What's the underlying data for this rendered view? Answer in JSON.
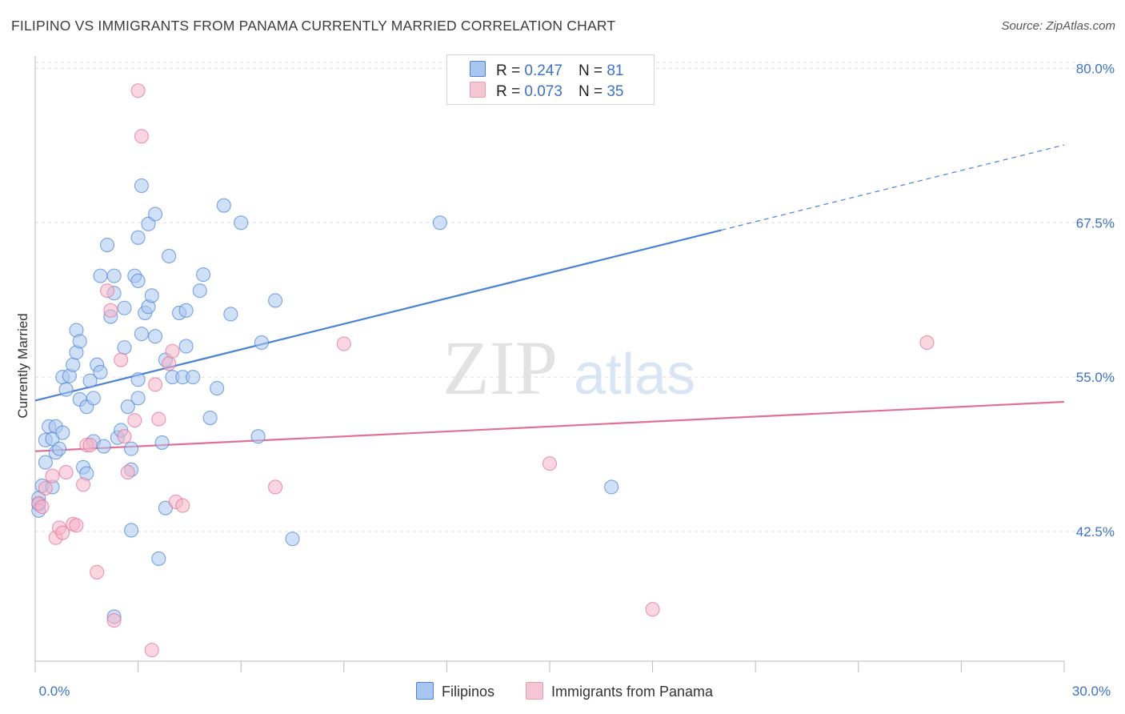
{
  "header": {
    "title": "FILIPINO VS IMMIGRANTS FROM PANAMA CURRENTLY MARRIED CORRELATION CHART",
    "source": "Source: ZipAtlas.com"
  },
  "watermark": {
    "zip": "ZIP",
    "atlas": "atlas"
  },
  "stats_legend": [
    {
      "r_label": "R =",
      "r_value": "0.247",
      "n_label": "N =",
      "n_value": "81",
      "color": "#a9c6f0"
    },
    {
      "r_label": "R =",
      "r_value": "0.073",
      "n_label": "N =",
      "n_value": "35",
      "color": "#f5b5c8"
    }
  ],
  "chart_data": {
    "type": "scatter",
    "ylabel": "Currently Married",
    "xlim": [
      0,
      30
    ],
    "ylim": [
      32,
      81
    ],
    "x_ticks": [
      0,
      3,
      6,
      9,
      12,
      15,
      18,
      21,
      24,
      27,
      30
    ],
    "x_tick_labels": [
      "0.0%",
      "30.0%"
    ],
    "y_ticks": [
      42.5,
      55.0,
      67.5,
      80.0
    ],
    "y_tick_labels": [
      "42.5%",
      "55.0%",
      "67.5%",
      "80.0%"
    ],
    "grid": true,
    "legend_position": "bottom-center",
    "series": [
      {
        "name": "Filipinos",
        "color": "#4a82d4",
        "fill": "#a9c6f0",
        "trend": {
          "x": [
            0,
            20
          ],
          "y": [
            53.1,
            66.9
          ],
          "dashed_to": [
            30,
            73.8
          ]
        },
        "points": [
          [
            0.1,
            45.2
          ],
          [
            0.1,
            44.7
          ],
          [
            0.1,
            44.2
          ],
          [
            0.2,
            46.2
          ],
          [
            0.3,
            48.1
          ],
          [
            0.3,
            49.9
          ],
          [
            0.4,
            51.0
          ],
          [
            0.5,
            50.0
          ],
          [
            0.5,
            46.1
          ],
          [
            0.6,
            48.9
          ],
          [
            0.6,
            51.0
          ],
          [
            0.7,
            49.2
          ],
          [
            0.8,
            50.5
          ],
          [
            0.8,
            55.0
          ],
          [
            0.9,
            54.0
          ],
          [
            1.0,
            55.1
          ],
          [
            1.1,
            56.0
          ],
          [
            1.2,
            57.0
          ],
          [
            1.2,
            58.8
          ],
          [
            1.3,
            53.2
          ],
          [
            1.3,
            57.9
          ],
          [
            1.4,
            47.7
          ],
          [
            1.5,
            47.2
          ],
          [
            1.5,
            52.6
          ],
          [
            1.6,
            54.7
          ],
          [
            1.7,
            49.8
          ],
          [
            1.7,
            53.3
          ],
          [
            1.8,
            56.0
          ],
          [
            1.9,
            55.4
          ],
          [
            1.9,
            63.2
          ],
          [
            2.0,
            49.4
          ],
          [
            2.1,
            65.7
          ],
          [
            2.2,
            59.9
          ],
          [
            2.3,
            61.8
          ],
          [
            2.3,
            35.6
          ],
          [
            2.3,
            63.2
          ],
          [
            2.4,
            50.1
          ],
          [
            2.5,
            50.7
          ],
          [
            2.6,
            60.6
          ],
          [
            2.6,
            57.4
          ],
          [
            2.7,
            52.6
          ],
          [
            2.8,
            49.2
          ],
          [
            2.8,
            47.5
          ],
          [
            2.8,
            42.6
          ],
          [
            2.9,
            63.2
          ],
          [
            3.0,
            62.8
          ],
          [
            3.0,
            53.3
          ],
          [
            3.0,
            54.8
          ],
          [
            3.0,
            66.3
          ],
          [
            3.1,
            70.5
          ],
          [
            3.1,
            58.5
          ],
          [
            3.2,
            60.2
          ],
          [
            3.3,
            67.4
          ],
          [
            3.3,
            60.7
          ],
          [
            3.4,
            61.6
          ],
          [
            3.5,
            58.3
          ],
          [
            3.5,
            68.2
          ],
          [
            3.6,
            40.3
          ],
          [
            3.7,
            49.7
          ],
          [
            3.8,
            44.4
          ],
          [
            3.8,
            56.4
          ],
          [
            3.9,
            64.8
          ],
          [
            4.0,
            55.0
          ],
          [
            4.2,
            60.2
          ],
          [
            4.3,
            55.0
          ],
          [
            4.4,
            57.5
          ],
          [
            4.4,
            60.4
          ],
          [
            4.6,
            55.0
          ],
          [
            4.8,
            62.0
          ],
          [
            4.9,
            63.3
          ],
          [
            5.1,
            51.7
          ],
          [
            5.3,
            54.1
          ],
          [
            5.5,
            68.9
          ],
          [
            5.7,
            60.1
          ],
          [
            6.0,
            67.5
          ],
          [
            6.5,
            50.2
          ],
          [
            6.6,
            57.8
          ],
          [
            7.0,
            61.2
          ],
          [
            7.5,
            41.9
          ],
          [
            11.8,
            67.5
          ],
          [
            16.8,
            46.1
          ]
        ]
      },
      {
        "name": "Immigrants from Panama",
        "color": "#e0709a",
        "fill": "#f5b5c8",
        "trend": {
          "x": [
            0,
            30
          ],
          "y": [
            49.0,
            53.0
          ]
        },
        "points": [
          [
            0.1,
            44.8
          ],
          [
            0.2,
            44.5
          ],
          [
            0.3,
            46.0
          ],
          [
            0.5,
            47.0
          ],
          [
            0.6,
            42.0
          ],
          [
            0.7,
            42.8
          ],
          [
            0.8,
            42.4
          ],
          [
            0.9,
            47.3
          ],
          [
            1.1,
            43.1
          ],
          [
            1.2,
            43.0
          ],
          [
            1.4,
            46.3
          ],
          [
            1.5,
            49.5
          ],
          [
            1.6,
            49.5
          ],
          [
            1.8,
            39.2
          ],
          [
            2.1,
            62.0
          ],
          [
            2.2,
            60.4
          ],
          [
            2.3,
            35.3
          ],
          [
            2.5,
            56.4
          ],
          [
            2.6,
            50.2
          ],
          [
            2.7,
            47.3
          ],
          [
            2.9,
            51.5
          ],
          [
            3.0,
            78.2
          ],
          [
            3.1,
            74.5
          ],
          [
            3.4,
            32.9
          ],
          [
            3.5,
            54.4
          ],
          [
            3.6,
            51.6
          ],
          [
            3.9,
            56.1
          ],
          [
            4.0,
            57.1
          ],
          [
            4.1,
            44.9
          ],
          [
            4.3,
            44.6
          ],
          [
            7.0,
            46.1
          ],
          [
            9.0,
            57.7
          ],
          [
            15.0,
            48.0
          ],
          [
            18.0,
            36.2
          ],
          [
            26.0,
            57.8
          ]
        ]
      }
    ]
  }
}
